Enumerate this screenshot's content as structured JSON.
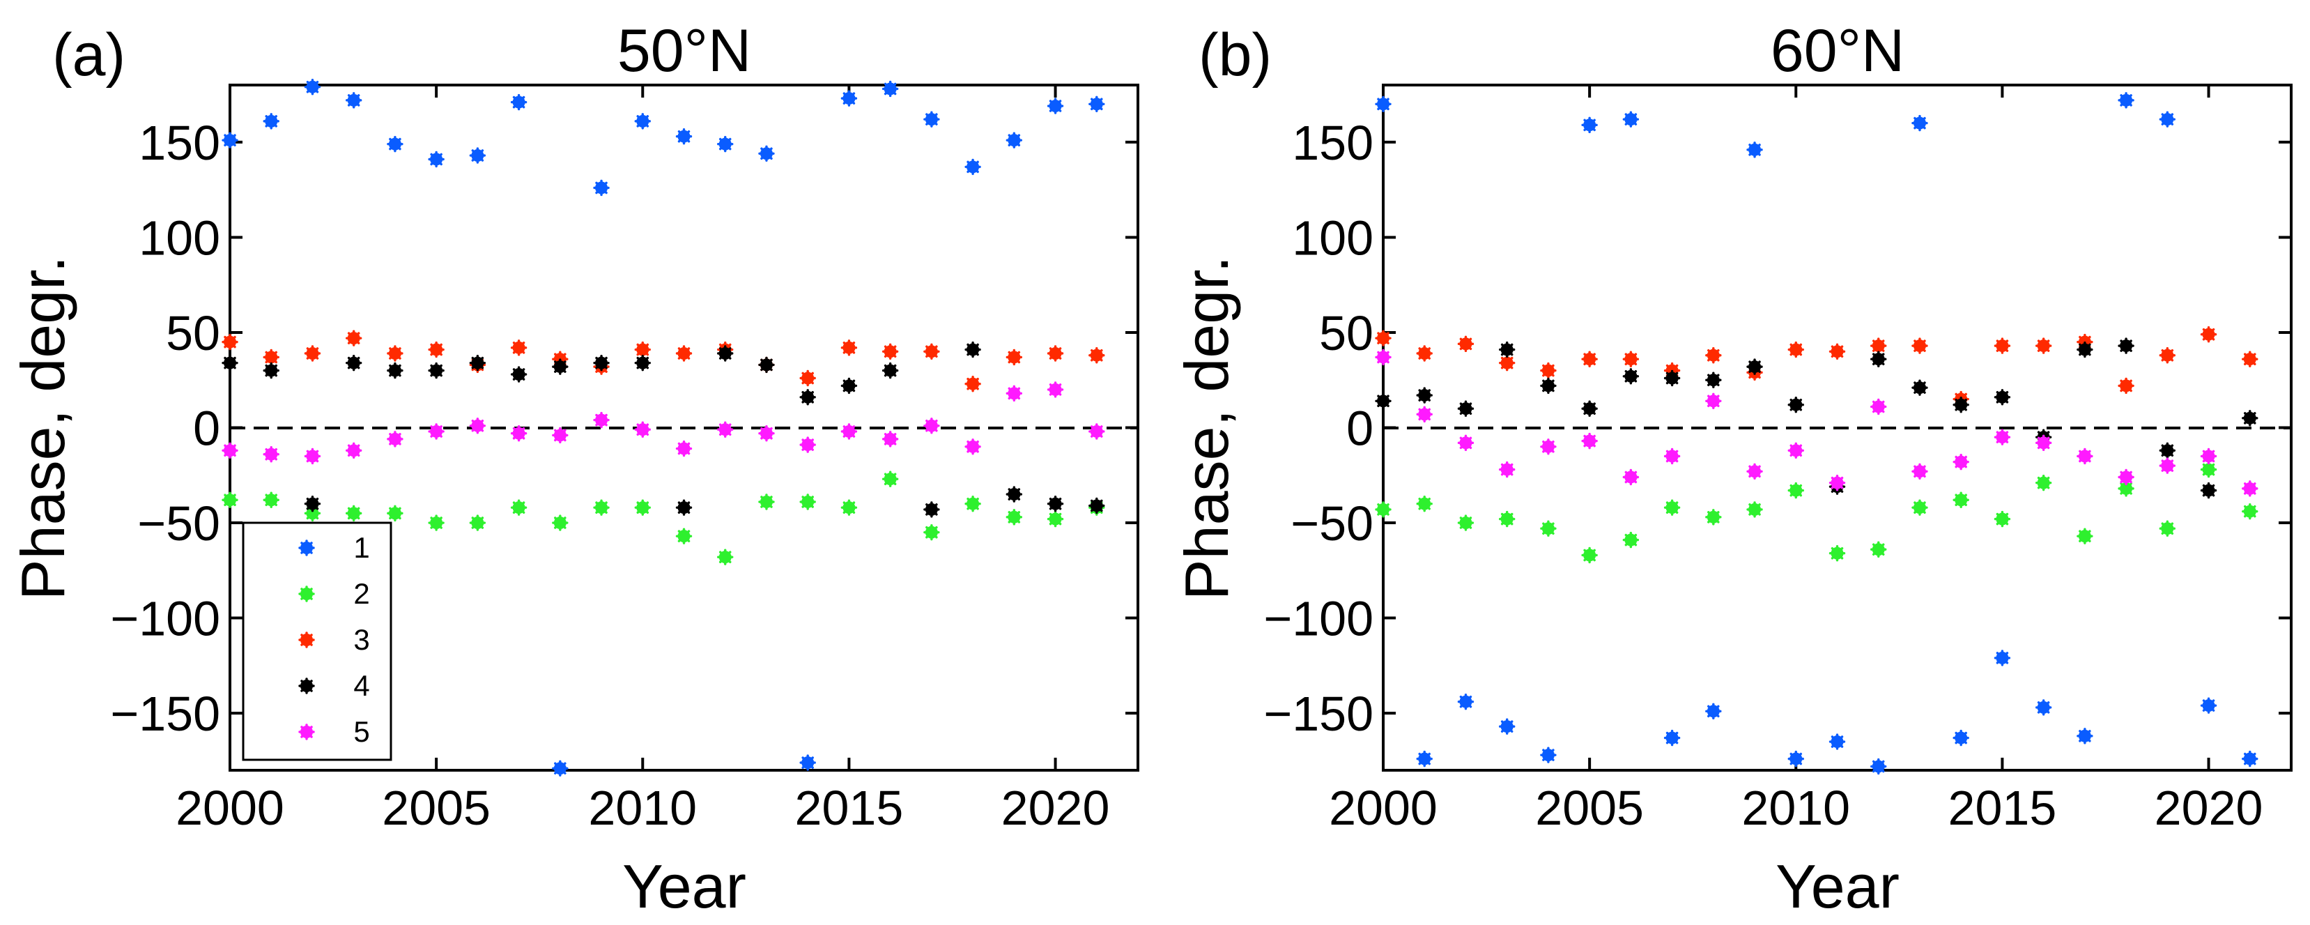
{
  "chart_data": [
    {
      "type": "scatter",
      "panel_label": "(a)",
      "title": "50°N",
      "xlabel": "Year",
      "ylabel": "Phase, degr.",
      "xlim": [
        2000,
        2022
      ],
      "ylim": [
        -180,
        180
      ],
      "xticks": [
        2000,
        2005,
        2010,
        2015,
        2020
      ],
      "yticks": [
        150,
        100,
        50,
        0,
        -50,
        -100,
        -150
      ],
      "ytick_labels": [
        "150",
        "100",
        "50",
        "0",
        "−50",
        "−100",
        "−150"
      ],
      "reference_line": {
        "y": 0,
        "style": "dashed"
      },
      "legend": {
        "position": "lower-left",
        "entries": [
          "1",
          "2",
          "3",
          "4",
          "5"
        ]
      },
      "series": [
        {
          "name": "1",
          "color": "#0a5cff",
          "x": [
            2000,
            2001,
            2002,
            2003,
            2004,
            2005,
            2006,
            2007,
            2008,
            2009,
            2010,
            2011,
            2012,
            2013,
            2014,
            2015,
            2016,
            2017,
            2018,
            2019,
            2020,
            2021
          ],
          "y": [
            151,
            161,
            179,
            172,
            149,
            141,
            143,
            171,
            -179,
            126,
            161,
            153,
            149,
            144,
            -176,
            173,
            178,
            162,
            137,
            151,
            169,
            170
          ]
        },
        {
          "name": "2",
          "color": "#2ef02e",
          "x": [
            2000,
            2001,
            2002,
            2003,
            2004,
            2005,
            2006,
            2007,
            2008,
            2009,
            2010,
            2011,
            2012,
            2013,
            2014,
            2015,
            2016,
            2017,
            2018,
            2019,
            2020,
            2021
          ],
          "y": [
            -38,
            -38,
            -45,
            -45,
            -45,
            -50,
            -50,
            -42,
            -50,
            -42,
            -42,
            -57,
            -68,
            -39,
            -39,
            -42,
            -27,
            -55,
            -40,
            -47,
            -48,
            -42
          ]
        },
        {
          "name": "3",
          "color": "#ff2a00",
          "x": [
            2000,
            2001,
            2002,
            2003,
            2004,
            2005,
            2006,
            2007,
            2008,
            2009,
            2010,
            2011,
            2012,
            2013,
            2014,
            2015,
            2016,
            2017,
            2018,
            2019,
            2020,
            2021
          ],
          "y": [
            45,
            37,
            39,
            47,
            39,
            41,
            33,
            42,
            36,
            32,
            41,
            39,
            41,
            33,
            26,
            42,
            40,
            40,
            23,
            37,
            39,
            38
          ]
        },
        {
          "name": "4",
          "color": "#000000",
          "x": [
            2000,
            2001,
            2002,
            2003,
            2004,
            2005,
            2006,
            2007,
            2008,
            2009,
            2010,
            2011,
            2012,
            2013,
            2014,
            2015,
            2016,
            2017,
            2018,
            2019,
            2020,
            2021
          ],
          "y": [
            34,
            30,
            -40,
            34,
            30,
            30,
            34,
            28,
            32,
            34,
            34,
            -42,
            39,
            33,
            16,
            22,
            30,
            -43,
            41,
            -35,
            -40,
            -41
          ]
        },
        {
          "name": "5",
          "color": "#ff1aff",
          "x": [
            2000,
            2001,
            2002,
            2003,
            2004,
            2005,
            2006,
            2007,
            2008,
            2009,
            2010,
            2011,
            2012,
            2013,
            2014,
            2015,
            2016,
            2017,
            2018,
            2019,
            2020,
            2021
          ],
          "y": [
            -12,
            -14,
            -15,
            -12,
            -6,
            -2,
            1,
            -3,
            -4,
            4,
            -1,
            -11,
            -1,
            -3,
            -9,
            -2,
            -6,
            1,
            -10,
            18,
            20,
            -2
          ]
        }
      ]
    },
    {
      "type": "scatter",
      "panel_label": "(b)",
      "title": "60°N",
      "xlabel": "Year",
      "ylabel": "Phase, degr.",
      "xlim": [
        2000,
        2022
      ],
      "ylim": [
        -180,
        180
      ],
      "xticks": [
        2000,
        2005,
        2010,
        2015,
        2020
      ],
      "yticks": [
        150,
        100,
        50,
        0,
        -50,
        -100,
        -150
      ],
      "ytick_labels": [
        "150",
        "100",
        "50",
        "0",
        "−50",
        "−100",
        "−150"
      ],
      "reference_line": {
        "y": 0,
        "style": "dashed"
      },
      "series": [
        {
          "name": "1",
          "color": "#0a5cff",
          "x": [
            2000,
            2001,
            2002,
            2003,
            2004,
            2005,
            2006,
            2007,
            2008,
            2009,
            2010,
            2011,
            2012,
            2013,
            2014,
            2015,
            2016,
            2017,
            2018,
            2019,
            2020,
            2021
          ],
          "y": [
            170,
            -174,
            -144,
            -157,
            -172,
            159,
            162,
            -163,
            -149,
            146,
            -174,
            -165,
            -178,
            160,
            -163,
            -121,
            -147,
            -162,
            172,
            162,
            -146,
            -174
          ]
        },
        {
          "name": "2",
          "color": "#2ef02e",
          "x": [
            2000,
            2001,
            2002,
            2003,
            2004,
            2005,
            2006,
            2007,
            2008,
            2009,
            2010,
            2011,
            2012,
            2013,
            2014,
            2015,
            2016,
            2017,
            2018,
            2019,
            2020,
            2021
          ],
          "y": [
            -43,
            -40,
            -50,
            -48,
            -53,
            -67,
            -59,
            -42,
            -47,
            -43,
            -33,
            -66,
            -64,
            -42,
            -38,
            -48,
            -29,
            -57,
            -32,
            -53,
            -22,
            -44
          ]
        },
        {
          "name": "3",
          "color": "#ff2a00",
          "x": [
            2000,
            2001,
            2002,
            2003,
            2004,
            2005,
            2006,
            2007,
            2008,
            2009,
            2010,
            2011,
            2012,
            2013,
            2014,
            2015,
            2016,
            2017,
            2018,
            2019,
            2020,
            2021
          ],
          "y": [
            47,
            39,
            44,
            34,
            30,
            36,
            36,
            30,
            38,
            29,
            41,
            40,
            43,
            43,
            15,
            43,
            43,
            45,
            22,
            38,
            49,
            36
          ]
        },
        {
          "name": "4",
          "color": "#000000",
          "x": [
            2000,
            2001,
            2002,
            2003,
            2004,
            2005,
            2006,
            2007,
            2008,
            2009,
            2010,
            2011,
            2012,
            2013,
            2014,
            2015,
            2016,
            2017,
            2018,
            2019,
            2020,
            2021
          ],
          "y": [
            14,
            17,
            10,
            41,
            22,
            10,
            27,
            26,
            25,
            32,
            12,
            -31,
            36,
            21,
            12,
            16,
            -5,
            41,
            43,
            -12,
            -33,
            5
          ]
        },
        {
          "name": "5",
          "color": "#ff1aff",
          "x": [
            2000,
            2001,
            2002,
            2003,
            2004,
            2005,
            2006,
            2007,
            2008,
            2009,
            2010,
            2011,
            2012,
            2013,
            2014,
            2015,
            2016,
            2017,
            2018,
            2019,
            2020,
            2021
          ],
          "y": [
            37,
            7,
            -8,
            -22,
            -10,
            -7,
            -26,
            -15,
            14,
            -23,
            -12,
            -29,
            11,
            -23,
            -18,
            -5,
            -8,
            -15,
            -26,
            -20,
            -15,
            -32
          ]
        }
      ]
    }
  ]
}
